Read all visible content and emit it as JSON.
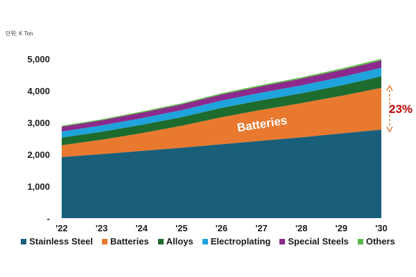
{
  "unit_label": "단위: K Ton",
  "chart_data": {
    "type": "area",
    "stacked": true,
    "x": [
      "'22",
      "'23",
      "'24",
      "'25",
      "'26",
      "'27",
      "'28",
      "'29",
      "'30"
    ],
    "ylim": [
      0,
      5000
    ],
    "yticks": [
      "-",
      "1,000",
      "2,000",
      "3,000",
      "4,000",
      "5,000"
    ],
    "grid": false,
    "legend_position": "bottom",
    "series": [
      {
        "name": "Stainless Steel",
        "color": "#1a5f7a",
        "values": [
          1920,
          2010,
          2110,
          2210,
          2320,
          2430,
          2540,
          2660,
          2780
        ]
      },
      {
        "name": "Batteries",
        "color": "#e8792f",
        "values": [
          370,
          450,
          560,
          690,
          850,
          970,
          1070,
          1180,
          1310
        ]
      },
      {
        "name": "Alloys",
        "color": "#1e6b2e",
        "values": [
          240,
          250,
          260,
          270,
          290,
          300,
          310,
          330,
          360
        ]
      },
      {
        "name": "Electroplating",
        "color": "#1ea3dc",
        "values": [
          190,
          200,
          210,
          220,
          230,
          240,
          250,
          260,
          270
        ]
      },
      {
        "name": "Special Steels",
        "color": "#8b2a8c",
        "values": [
          150,
          160,
          170,
          180,
          190,
          200,
          210,
          220,
          230
        ]
      },
      {
        "name": "Others",
        "color": "#5cb947",
        "values": [
          30,
          30,
          35,
          35,
          40,
          40,
          40,
          45,
          50
        ]
      }
    ],
    "annotations": {
      "series_label": "Batteries",
      "growth_label": "23%"
    }
  }
}
